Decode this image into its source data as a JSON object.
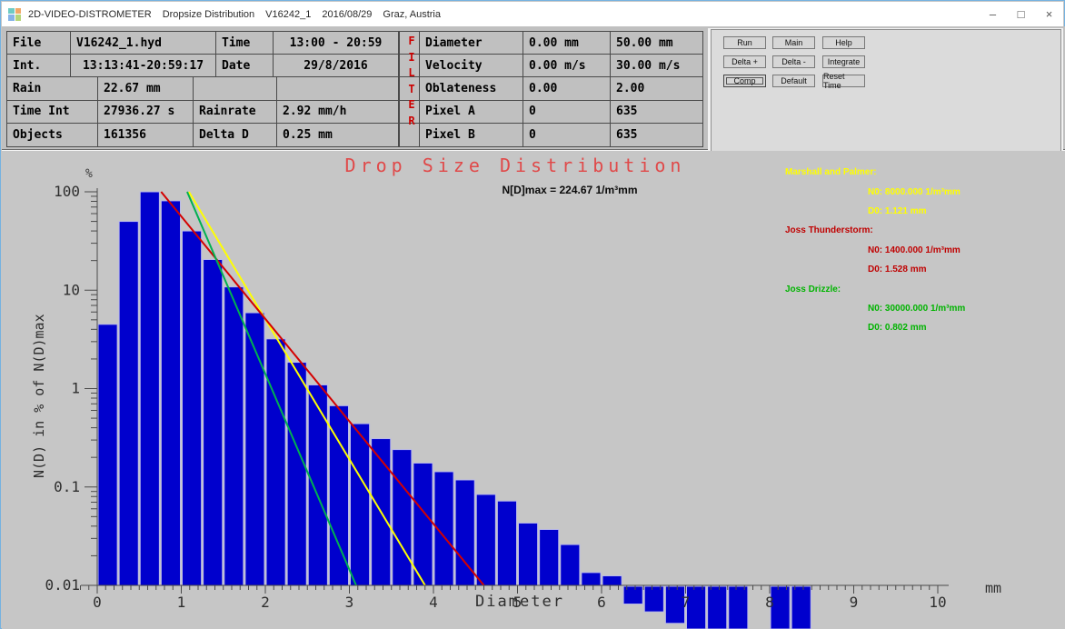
{
  "window": {
    "title_segments": [
      "2D-VIDEO-DISTROMETER",
      "Dropsize Distribution",
      "V16242_1",
      "2016/08/29",
      "Graz, Austria"
    ],
    "controls": {
      "minimize": "–",
      "maximize": "□",
      "close": "×"
    }
  },
  "info_table": {
    "r1": {
      "l1": "File",
      "v1": "V16242_1.hyd",
      "l2": "Time",
      "v2": "13:00 - 20:59"
    },
    "r2": {
      "l1": "Int.",
      "v1": "13:13:41-20:59:17",
      "l2": "Date",
      "v2": "29/8/2016"
    },
    "r3": {
      "l1": "Rain",
      "v1": "22.67 mm",
      "l2": "",
      "v2": ""
    },
    "r4": {
      "l1": "Time Int",
      "v1": "27936.27 s",
      "l2": "Rainrate",
      "v2": "2.92 mm/h"
    },
    "r5": {
      "l1": "Objects",
      "v1": "161356",
      "l2": "Delta D",
      "v2": "0.25 mm"
    }
  },
  "filter": {
    "letters": [
      "F",
      "I",
      "L",
      "T",
      "E",
      "R"
    ],
    "f1": {
      "label": "Diameter",
      "min": "0.00 mm",
      "max": "50.00 mm"
    },
    "f2": {
      "label": "Velocity",
      "min": "0.00 m/s",
      "max": "30.00 m/s"
    },
    "f3": {
      "label": "Oblateness",
      "min": "0.00",
      "max": "2.00"
    },
    "f4": {
      "label": "Pixel A",
      "min": "0",
      "max": "635"
    },
    "f5": {
      "label": "Pixel B",
      "min": "0",
      "max": "635"
    }
  },
  "toolbar": {
    "rows": [
      [
        "Run",
        "Main",
        "Help"
      ],
      [
        "Delta +",
        "Delta -",
        "Integrate"
      ],
      [
        "Comp",
        "Default",
        "Reset Time"
      ]
    ],
    "focused_button": "Comp"
  },
  "chart_data": {
    "type": "bar",
    "title": "Drop Size Distribution",
    "annotation": "N[D]max = 224.67 1/m³mm",
    "xlabel": "Diameter",
    "x_unit_label": "mm",
    "y_unit_label": "%",
    "ylabel": "N(D) in % of N(D)max",
    "x_axis": {
      "min": 0,
      "max": 10,
      "ticks": [
        0,
        1,
        2,
        3,
        4,
        5,
        6,
        7,
        8,
        9,
        10
      ],
      "minor_step": 0.1,
      "scale": "linear"
    },
    "y_axis": {
      "min_pct": 0.01,
      "max_pct": 100,
      "ticks": [
        100,
        10,
        1,
        0.1,
        0.01
      ],
      "scale": "log"
    },
    "bin_width_mm": 0.25,
    "bar_color": "#0000cd",
    "bar_edge_color": "#b9b9ea",
    "bars_pct_of_max": [
      {
        "d": 0.0,
        "v": 4.5
      },
      {
        "d": 0.25,
        "v": 50
      },
      {
        "d": 0.5,
        "v": 100
      },
      {
        "d": 0.75,
        "v": 81
      },
      {
        "d": 1.0,
        "v": 40
      },
      {
        "d": 1.25,
        "v": 20.5
      },
      {
        "d": 1.5,
        "v": 10.8
      },
      {
        "d": 1.75,
        "v": 5.9
      },
      {
        "d": 2.0,
        "v": 3.2
      },
      {
        "d": 2.25,
        "v": 1.85
      },
      {
        "d": 2.5,
        "v": 1.09
      },
      {
        "d": 2.75,
        "v": 0.67
      },
      {
        "d": 3.0,
        "v": 0.44
      },
      {
        "d": 3.25,
        "v": 0.31
      },
      {
        "d": 3.5,
        "v": 0.24
      },
      {
        "d": 3.75,
        "v": 0.175
      },
      {
        "d": 4.0,
        "v": 0.143
      },
      {
        "d": 4.25,
        "v": 0.118
      },
      {
        "d": 4.5,
        "v": 0.084
      },
      {
        "d": 4.75,
        "v": 0.072
      },
      {
        "d": 5.0,
        "v": 0.043
      },
      {
        "d": 5.25,
        "v": 0.037
      },
      {
        "d": 5.5,
        "v": 0.026
      },
      {
        "d": 5.75,
        "v": 0.0135
      },
      {
        "d": 6.0,
        "v": 0.0125
      },
      {
        "d": 6.25,
        "v": 0.0066
      },
      {
        "d": 6.5,
        "v": 0.0055
      },
      {
        "d": 6.75,
        "v": 0.0042
      },
      {
        "d": 7.0,
        "v": 0.0018
      },
      {
        "d": 7.25,
        "v": 0.0018
      },
      {
        "d": 7.5,
        "v": 0.0018
      },
      {
        "d": 8.0,
        "v": 0.0018
      },
      {
        "d": 8.25,
        "v": 0.0018
      }
    ],
    "model_lines": [
      {
        "name": "Marshall and Palmer",
        "color": "#ffff00",
        "d_at_100pct": 1.09,
        "d_at_001pct": 3.9
      },
      {
        "name": "Joss Thunderstorm",
        "color": "#d40000",
        "d_at_100pct": 0.76,
        "d_at_001pct": 4.6
      },
      {
        "name": "Joss Drizzle",
        "color": "#00b050",
        "d_at_100pct": 1.07,
        "d_at_001pct": 3.08
      }
    ],
    "legend": [
      {
        "title": "Marshall and Palmer:",
        "n0": "N0: 8000.000 1/m³mm",
        "d0": "D0: 1.121 mm",
        "color": "#ffff00"
      },
      {
        "title": "Joss Thunderstorm:",
        "n0": "N0: 1400.000 1/m³mm",
        "d0": "D0: 1.528 mm",
        "color": "#c00000"
      },
      {
        "title": "Joss Drizzle:",
        "n0": "N0: 30000.000 1/m³mm",
        "d0": "D0: 0.802 mm",
        "color": "#00b400"
      }
    ]
  }
}
